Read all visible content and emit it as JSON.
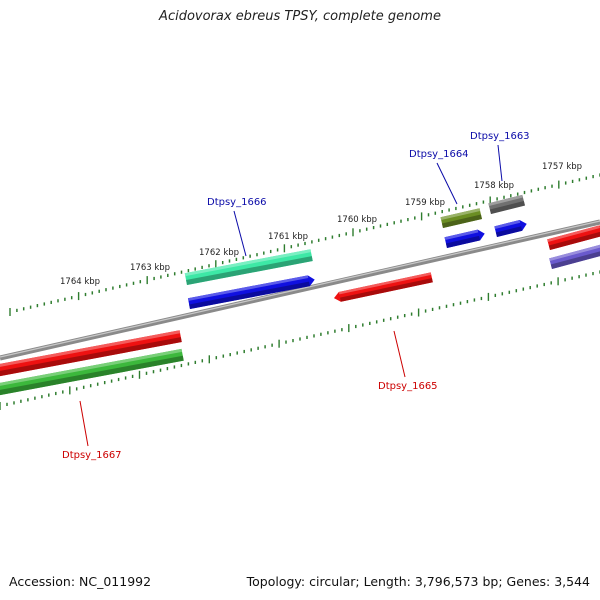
{
  "title": "Acidovorax ebreus TPSY, complete genome",
  "footer": {
    "accession": "Accession: NC_011992",
    "summary": "Topology: circular; Length: 3,796,573 bp; Genes: 3,544"
  },
  "colors": {
    "backbone": "#8a8a8a",
    "tick": "#2f7d2f",
    "forward_label": "#0a0aa8",
    "reverse_label": "#cc0000"
  },
  "scale_labels": [
    "1764 kbp",
    "1763 kbp",
    "1762 kbp",
    "1761 kbp",
    "1760 kbp",
    "1759 kbp",
    "1758 kbp",
    "1757 kbp"
  ],
  "gene_labels": [
    "Dtpsy_1666",
    "Dtpsy_1664",
    "Dtpsy_1663",
    "Dtpsy_1665",
    "Dtpsy_1667"
  ],
  "features": [
    {
      "strand": "forward",
      "track": 1,
      "color": "#3de8a6",
      "label_index": 0
    },
    {
      "strand": "forward",
      "track": 2,
      "color": "#1010e0"
    },
    {
      "strand": "forward",
      "track": 1,
      "color": "#6b8e23",
      "label_index": 1
    },
    {
      "strand": "forward",
      "track": 2,
      "color": "#1010e0"
    },
    {
      "strand": "forward",
      "track": 1,
      "color": "#707070",
      "label_index": 2
    },
    {
      "strand": "forward",
      "track": 2,
      "color": "#1010e0"
    },
    {
      "strand": "forward",
      "track": 2,
      "color": "#ee1111"
    },
    {
      "strand": "forward",
      "track": 3,
      "color": "#6a5acd"
    },
    {
      "strand": "reverse",
      "track": 1,
      "color": "#ee1111",
      "label_index": 3
    },
    {
      "strand": "reverse",
      "track": 1,
      "color": "#ee1111"
    },
    {
      "strand": "reverse",
      "track": 2,
      "color": "#3cb83c",
      "label_index": 4
    }
  ]
}
